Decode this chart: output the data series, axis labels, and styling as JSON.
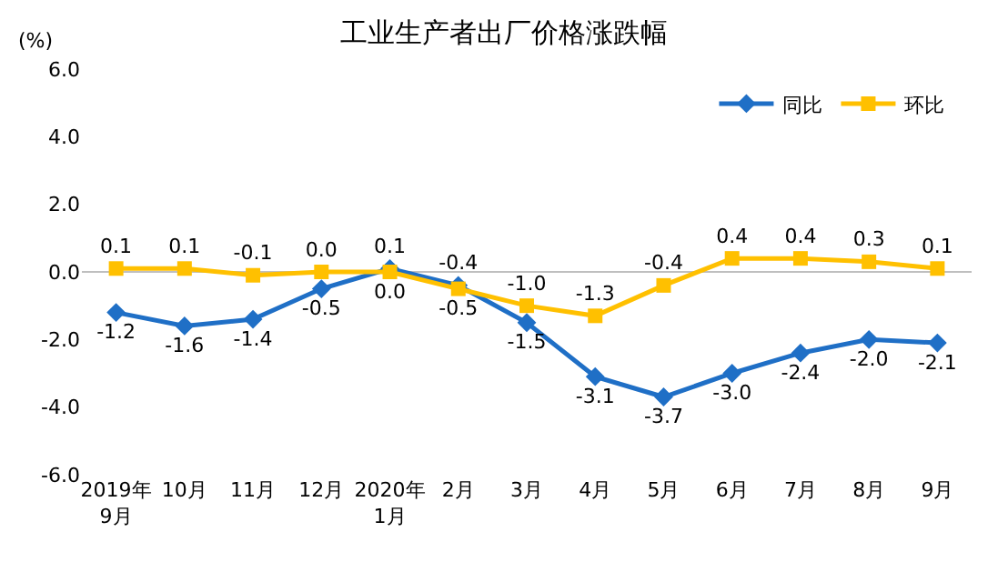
{
  "chart_data": {
    "type": "line",
    "title": "工业生产者出厂价格涨跌幅",
    "ylabel": "(%)",
    "categories": [
      "2019年\n9月",
      "10月",
      "11月",
      "12月",
      "2020年\n1月",
      "2月",
      "3月",
      "4月",
      "5月",
      "6月",
      "7月",
      "8月",
      "9月"
    ],
    "series": [
      {
        "name": "同比",
        "color": "#1f6fc6",
        "marker": "diamond",
        "values": [
          -1.2,
          -1.6,
          -1.4,
          -0.5,
          0.1,
          -0.4,
          -1.5,
          -3.1,
          -3.7,
          -3.0,
          -2.4,
          -2.0,
          -2.1
        ],
        "value_labels": [
          "-1.2",
          "-1.6",
          "-1.4",
          "-0.5",
          "0.1",
          "-0.4",
          "-1.5",
          "-3.1",
          "-3.7",
          "-3.0",
          "-2.4",
          "-2.0",
          "-2.1"
        ]
      },
      {
        "name": "环比",
        "color": "#ffc000",
        "marker": "square",
        "values": [
          0.1,
          0.1,
          -0.1,
          0.0,
          0.0,
          -0.5,
          -1.0,
          -1.3,
          -0.4,
          0.4,
          0.4,
          0.3,
          0.1
        ],
        "value_labels": [
          "0.1",
          "0.1",
          "-0.1",
          "0.0",
          "0.0",
          "-0.5",
          "-1.0",
          "-1.3",
          "-0.4",
          "0.4",
          "0.4",
          "0.3",
          "0.1"
        ]
      }
    ],
    "ylim": [
      -6.0,
      6.0
    ],
    "yticks": [
      {
        "value": -6,
        "label": "-6.0"
      },
      {
        "value": -4,
        "label": "-4.0"
      },
      {
        "value": -2,
        "label": "-2.0"
      },
      {
        "value": 0,
        "label": "0.0"
      },
      {
        "value": 2,
        "label": "2.0"
      },
      {
        "value": 4,
        "label": "4.0"
      },
      {
        "value": 6,
        "label": "6.0"
      }
    ],
    "ref_lines": [
      {
        "axis": "y",
        "value": 0,
        "color": "#bfbfbf"
      }
    ],
    "grid": false,
    "legend": "top right",
    "line_style": "solid"
  }
}
